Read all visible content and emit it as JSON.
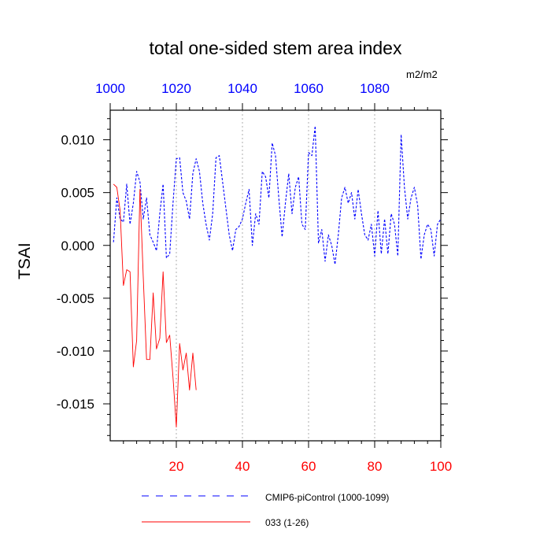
{
  "chart_data": {
    "type": "line",
    "title": "total one-sided stem area index",
    "units": "m2/m2",
    "ylabel": "TSAI",
    "xlim": [
      0,
      100
    ],
    "ylim": [
      -0.0185,
      0.0128
    ],
    "top_axis": {
      "ticks": [
        0,
        20,
        40,
        60,
        80
      ],
      "tick_labels": [
        "1000",
        "1020",
        "1040",
        "1060",
        "1080"
      ],
      "color": "#0000ff"
    },
    "bottom_axis": {
      "ticks": [
        20,
        40,
        60,
        80,
        100
      ],
      "tick_labels": [
        "20",
        "40",
        "60",
        "80",
        "100"
      ],
      "color": "#ff0000"
    },
    "y_ticks": [
      0.01,
      0.005,
      0.0,
      -0.005,
      -0.01,
      -0.015
    ],
    "y_tick_labels": [
      "0.010",
      "0.005",
      "0.000",
      "-0.005",
      "-0.010",
      "-0.015"
    ],
    "grid": "dotted vertical lines at 20, 40, 60, 80",
    "legend_placement": "bottom",
    "series": [
      {
        "name": "CMIP6-piControl (1000-1099)",
        "color": "#0000ff",
        "style": "dashed",
        "x": [
          1,
          2,
          3,
          4,
          5,
          6,
          7,
          8,
          9,
          10,
          11,
          12,
          13,
          14,
          15,
          16,
          17,
          18,
          19,
          20,
          21,
          22,
          23,
          24,
          25,
          26,
          27,
          28,
          29,
          30,
          31,
          32,
          33,
          34,
          35,
          36,
          37,
          38,
          39,
          40,
          41,
          42,
          43,
          44,
          45,
          46,
          47,
          48,
          49,
          50,
          51,
          52,
          53,
          54,
          55,
          56,
          57,
          58,
          59,
          60,
          61,
          62,
          63,
          64,
          65,
          66,
          67,
          68,
          69,
          70,
          71,
          72,
          73,
          74,
          75,
          76,
          77,
          78,
          79,
          80,
          81,
          82,
          83,
          84,
          85,
          86,
          87,
          88,
          89,
          90,
          91,
          92,
          93,
          94,
          95,
          96,
          97,
          98,
          99,
          100
        ],
        "values": [
          0.0003,
          0.0045,
          0.0025,
          0.0022,
          0.0058,
          0.002,
          0.004,
          0.007,
          0.006,
          0.0025,
          0.0045,
          0.001,
          0.0003,
          -0.0005,
          0.003,
          0.0058,
          -0.0012,
          -0.0008,
          0.004,
          0.0082,
          0.0083,
          0.005,
          0.0042,
          0.0025,
          0.0068,
          0.0082,
          0.007,
          0.004,
          0.002,
          0.0005,
          0.003,
          0.0083,
          0.0085,
          0.006,
          0.0035,
          0.001,
          -0.0005,
          0.0015,
          0.0018,
          0.0025,
          0.004,
          0.0053,
          0.0,
          0.003,
          0.002,
          0.007,
          0.0065,
          0.0045,
          0.0097,
          0.0085,
          0.0045,
          0.0008,
          0.004,
          0.0068,
          0.003,
          0.0055,
          0.0065,
          0.002,
          0.0015,
          0.0088,
          0.0085,
          0.0113,
          0.0002,
          0.0015,
          -0.0015,
          0.001,
          0.0,
          -0.0018,
          0.001,
          0.0045,
          0.0055,
          0.004,
          0.005,
          0.0025,
          0.0053,
          0.003,
          0.001,
          0.0005,
          0.002,
          -0.001,
          0.0033,
          -0.0008,
          0.0025,
          -0.0008,
          0.003,
          0.002,
          -0.001,
          0.0105,
          0.0055,
          0.0025,
          0.0045,
          0.0055,
          0.0038,
          -0.0013,
          0.001,
          0.002,
          0.0015,
          -0.001,
          0.002,
          0.0025
        ]
      },
      {
        "name": "033 (1-26)",
        "color": "#ff0000",
        "style": "solid",
        "x": [
          1,
          2,
          3,
          4,
          5,
          6,
          7,
          8,
          9,
          10,
          11,
          12,
          13,
          14,
          15,
          16,
          17,
          18,
          19,
          20,
          21,
          22,
          23,
          24,
          25,
          26
        ],
        "values": [
          0.0058,
          0.0055,
          0.0033,
          -0.0038,
          -0.0023,
          -0.0025,
          -0.0115,
          -0.009,
          0.0053,
          -0.003,
          -0.0108,
          -0.0108,
          -0.0045,
          -0.0098,
          -0.0088,
          -0.0025,
          -0.0092,
          -0.0085,
          -0.0125,
          -0.0172,
          -0.0093,
          -0.0118,
          -0.0102,
          -0.0137,
          -0.0102,
          -0.0137
        ]
      }
    ]
  }
}
